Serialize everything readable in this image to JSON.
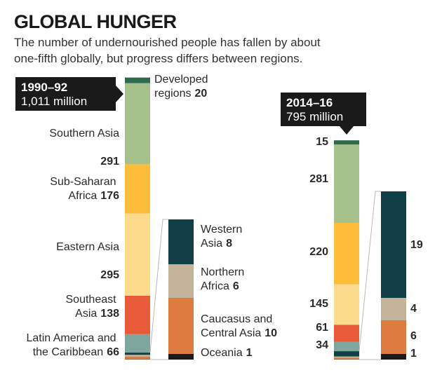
{
  "chart_data": {
    "type": "stacked_bar",
    "title": "GLOBAL HUNGER",
    "subtitle": "The number of undernourished people has fallen by about one-fifth globally, but progress differs between regions.",
    "categories": [
      "1990–92",
      "2014–16"
    ],
    "totals": {
      "values": [
        1011,
        795
      ],
      "value_labels": [
        "1,011 million",
        "795 million"
      ]
    },
    "series": [
      {
        "name": "Developed regions",
        "color": "#2e6b4f",
        "values": [
          20,
          15
        ]
      },
      {
        "name": "Southern Asia",
        "color": "#a6c18b",
        "values": [
          291,
          281
        ]
      },
      {
        "name": "Sub-Saharan Africa",
        "color": "#fbbd3a",
        "values": [
          176,
          220
        ]
      },
      {
        "name": "Eastern Asia",
        "color": "#fedb8c",
        "values": [
          295,
          145
        ]
      },
      {
        "name": "Southeast Asia",
        "color": "#e85a38",
        "values": [
          138,
          61
        ]
      },
      {
        "name": "Latin America and the Caribbean",
        "color": "#7ea69f",
        "values": [
          66,
          34
        ]
      },
      {
        "name": "Western Asia",
        "color": "#103f47",
        "values": [
          8,
          19
        ]
      },
      {
        "name": "Northern Africa",
        "color": "#c3b39a",
        "values": [
          6,
          4
        ]
      },
      {
        "name": "Caucasus and Central Asia",
        "color": "#dc7c3f",
        "values": [
          10,
          6
        ]
      },
      {
        "name": "Oceania",
        "color": "#1a1a1a",
        "values": [
          1,
          1
        ]
      }
    ]
  }
}
